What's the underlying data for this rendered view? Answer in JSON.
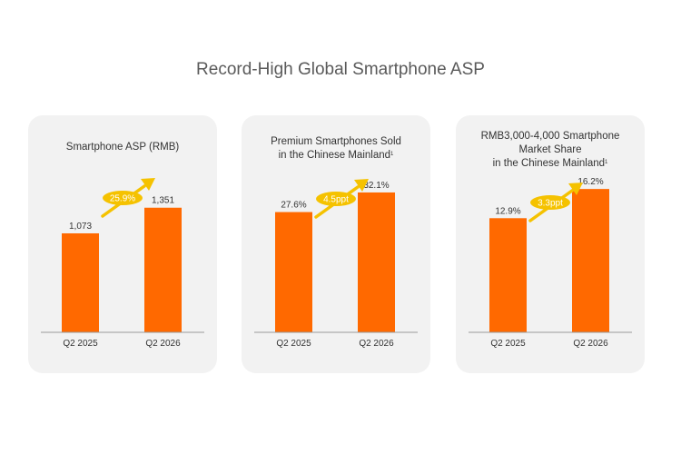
{
  "page_title": "Record-High Global Smartphone ASP",
  "colors": {
    "bar": "#ff6900",
    "badge": "#f5c200",
    "panel_bg": "#f2f2f2",
    "baseline": "#999999"
  },
  "chart_data": [
    {
      "type": "bar",
      "title_lines": [
        {
          "text": "Smartphone ASP (RMB)",
          "sup": ""
        }
      ],
      "categories": [
        "Q2 2025",
        "Q2 2026"
      ],
      "values": [
        1073,
        1351
      ],
      "value_labels": [
        "1,073",
        "1,351"
      ],
      "ylim": [
        0,
        1880
      ],
      "change_label": "25.9%"
    },
    {
      "type": "bar",
      "title_lines": [
        {
          "text": "Premium Smartphones Sold",
          "sup": ""
        },
        {
          "text": "in the Chinese Mainland",
          "sup": "1"
        }
      ],
      "categories": [
        "Q2 2025",
        "Q2 2026"
      ],
      "values": [
        27.6,
        32.1
      ],
      "value_labels": [
        "27.6%",
        "32.1%"
      ],
      "ylim": [
        0,
        39.8
      ],
      "change_label": "4.5ppt"
    },
    {
      "type": "bar",
      "title_lines": [
        {
          "text": "RMB3,000-4,000 Smartphone",
          "sup": ""
        },
        {
          "text": "Market Share",
          "sup": ""
        },
        {
          "text": "in the Chinese Mainland",
          "sup": "1"
        }
      ],
      "categories": [
        "Q2 2025",
        "Q2 2026"
      ],
      "values": [
        12.9,
        16.2
      ],
      "value_labels": [
        "12.9%",
        "16.2%"
      ],
      "ylim": [
        0,
        19.6
      ],
      "change_label": "3.3ppt"
    }
  ]
}
